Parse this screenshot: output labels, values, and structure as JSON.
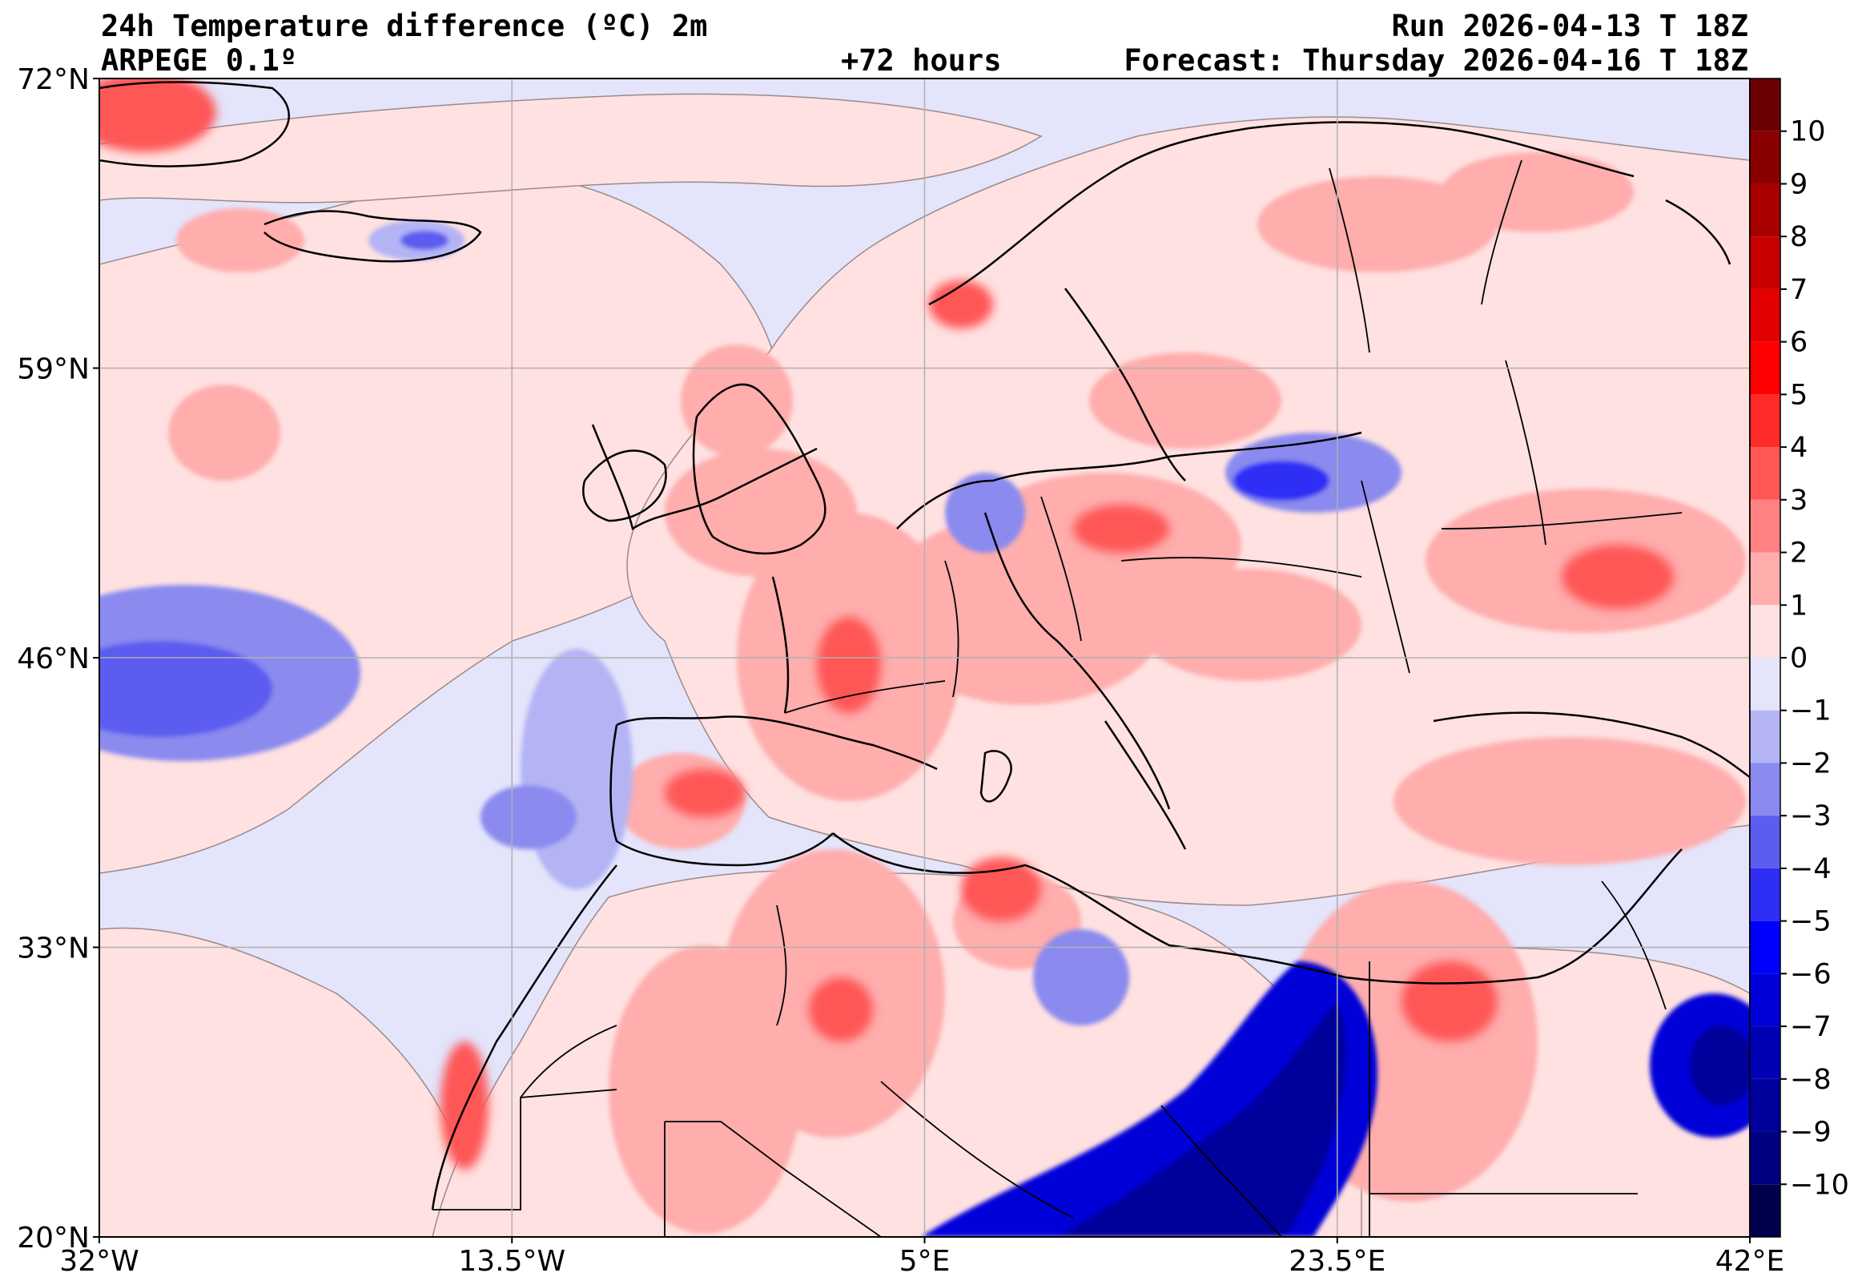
{
  "header": {
    "title": "24h Temperature difference (ºC) 2m",
    "model": "ARPEGE 0.1º",
    "lead": "+72 hours",
    "run": "Run 2026-04-13 T 18Z",
    "forecast": "Forecast: Thursday 2026-04-16 T 18Z"
  },
  "map": {
    "lon_range": [
      -32,
      42
    ],
    "lat_range": [
      20,
      72
    ],
    "lon_ticks": [
      {
        "value": -32,
        "label": "32°W"
      },
      {
        "value": -13.5,
        "label": "13.5°W"
      },
      {
        "value": 5,
        "label": "5°E"
      },
      {
        "value": 23.5,
        "label": "23.5°E"
      },
      {
        "value": 42,
        "label": "42°E"
      }
    ],
    "lat_ticks": [
      {
        "value": 72,
        "label": "72°N"
      },
      {
        "value": 59,
        "label": "59°N"
      },
      {
        "value": 46,
        "label": "46°N"
      },
      {
        "value": 33,
        "label": "33°N"
      },
      {
        "value": 20,
        "label": "20°N"
      }
    ],
    "gridlines": true,
    "ocean_color": "#e4e4fb",
    "colorbar": {
      "min": -11,
      "max": 11,
      "tick_labels": [
        {
          "value": 10,
          "label": "10"
        },
        {
          "value": 9,
          "label": "9"
        },
        {
          "value": 8,
          "label": "8"
        },
        {
          "value": 7,
          "label": "7"
        },
        {
          "value": 6,
          "label": "6"
        },
        {
          "value": 5,
          "label": "5"
        },
        {
          "value": 4,
          "label": "4"
        },
        {
          "value": 3,
          "label": "3"
        },
        {
          "value": 2,
          "label": "2"
        },
        {
          "value": 1,
          "label": "1"
        },
        {
          "value": 0,
          "label": "0"
        },
        {
          "value": -1,
          "label": "−1"
        },
        {
          "value": -2,
          "label": "−2"
        },
        {
          "value": -3,
          "label": "−3"
        },
        {
          "value": -4,
          "label": "−4"
        },
        {
          "value": -5,
          "label": "−5"
        },
        {
          "value": -6,
          "label": "−6"
        },
        {
          "value": -7,
          "label": "−7"
        },
        {
          "value": -8,
          "label": "−8"
        },
        {
          "value": -9,
          "label": "−9"
        },
        {
          "value": -10,
          "label": "−10"
        }
      ],
      "bands": [
        {
          "from": 10,
          "to": 11,
          "color": "#6a0000"
        },
        {
          "from": 9,
          "to": 10,
          "color": "#8a0000"
        },
        {
          "from": 8,
          "to": 9,
          "color": "#a80000"
        },
        {
          "from": 7,
          "to": 8,
          "color": "#c80000"
        },
        {
          "from": 6,
          "to": 7,
          "color": "#e30000"
        },
        {
          "from": 5,
          "to": 6,
          "color": "#ff0000"
        },
        {
          "from": 4,
          "to": 5,
          "color": "#ff2a2a"
        },
        {
          "from": 3,
          "to": 4,
          "color": "#ff5656"
        },
        {
          "from": 2,
          "to": 3,
          "color": "#ff8181"
        },
        {
          "from": 1,
          "to": 2,
          "color": "#ffadad"
        },
        {
          "from": 0,
          "to": 1,
          "color": "#ffe1e1"
        },
        {
          "from": -1,
          "to": 0,
          "color": "#e4e4fb"
        },
        {
          "from": -2,
          "to": -1,
          "color": "#b4b4f5"
        },
        {
          "from": -3,
          "to": -2,
          "color": "#8a8aef"
        },
        {
          "from": -4,
          "to": -3,
          "color": "#5c5cf0"
        },
        {
          "from": -5,
          "to": -4,
          "color": "#2e2ef5"
        },
        {
          "from": -6,
          "to": -5,
          "color": "#0000ff"
        },
        {
          "from": -7,
          "to": -6,
          "color": "#0000d8"
        },
        {
          "from": -8,
          "to": -7,
          "color": "#0000b4"
        },
        {
          "from": -9,
          "to": -8,
          "color": "#00009a"
        },
        {
          "from": -10,
          "to": -9,
          "color": "#000080"
        },
        {
          "from": -11,
          "to": -10,
          "color": "#00004c"
        }
      ]
    }
  }
}
